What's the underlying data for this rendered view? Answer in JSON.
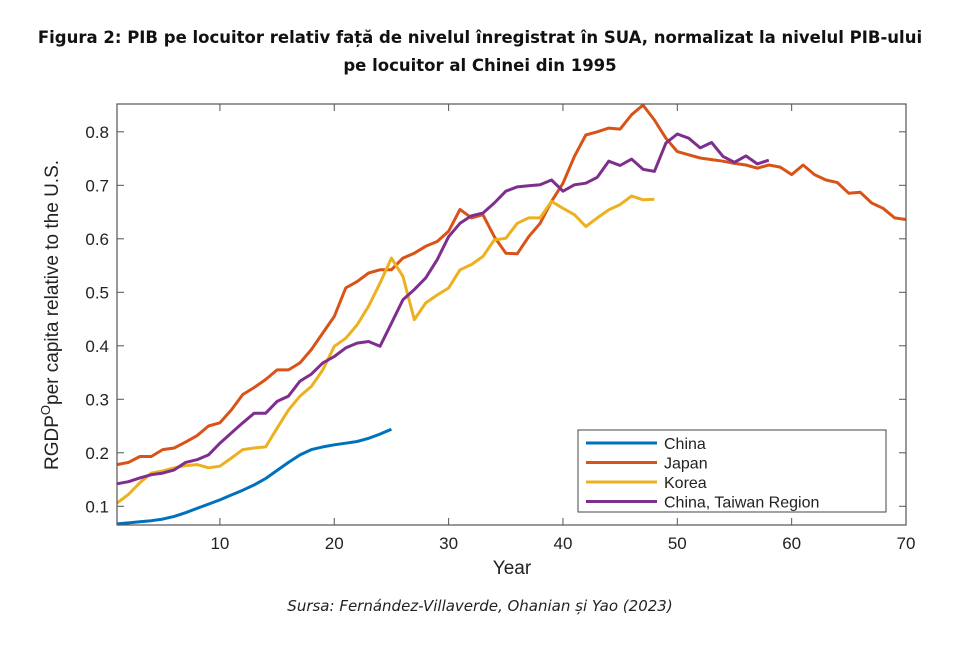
{
  "figure": {
    "title_line1": "Figura 2: PIB pe locuitor relativ față de nivelul înregistrat în SUA, normalizat la nivelul PIB-ului",
    "title_line2": "pe locuitor al Chinei din 1995",
    "source": "Sursa: Fernández-Villaverde, Ohanian și Yao (2023)"
  },
  "chart_data": {
    "type": "line",
    "title": "",
    "xlabel": "Year",
    "ylabel_main": "RGDP",
    "ylabel_sup": "O",
    "ylabel_rest": "per capita relative to the U.S.",
    "xlim": [
      1,
      70
    ],
    "ylim": [
      0.065,
      0.852
    ],
    "xticks": [
      10,
      20,
      30,
      40,
      50,
      60,
      70
    ],
    "yticks": [
      0.1,
      0.2,
      0.3,
      0.4,
      0.5,
      0.6,
      0.7,
      0.8
    ],
    "grid": false,
    "legend_position": "bottom-right",
    "series": [
      {
        "name": "China",
        "color": "#0072BD",
        "x_start": 1,
        "values": [
          0.067,
          0.069,
          0.071,
          0.073,
          0.076,
          0.081,
          0.088,
          0.096,
          0.104,
          0.112,
          0.121,
          0.13,
          0.14,
          0.152,
          0.167,
          0.182,
          0.196,
          0.206,
          0.211,
          0.215,
          0.218,
          0.221,
          0.227,
          0.235,
          0.244
        ]
      },
      {
        "name": "Japan",
        "color": "#D95319",
        "x_start": 1,
        "values": [
          0.178,
          0.182,
          0.193,
          0.193,
          0.206,
          0.209,
          0.22,
          0.232,
          0.25,
          0.256,
          0.28,
          0.309,
          0.322,
          0.337,
          0.355,
          0.355,
          0.368,
          0.393,
          0.424,
          0.455,
          0.508,
          0.52,
          0.536,
          0.542,
          0.542,
          0.564,
          0.573,
          0.586,
          0.595,
          0.614,
          0.655,
          0.639,
          0.645,
          0.604,
          0.573,
          0.572,
          0.604,
          0.629,
          0.67,
          0.704,
          0.754,
          0.794,
          0.8,
          0.807,
          0.805,
          0.832,
          0.85,
          0.822,
          0.788,
          0.763,
          0.757,
          0.751,
          0.748,
          0.745,
          0.741,
          0.738,
          0.732,
          0.738,
          0.734,
          0.72,
          0.738,
          0.72,
          0.71,
          0.705,
          0.685,
          0.687,
          0.667,
          0.657,
          0.639,
          0.636
        ]
      },
      {
        "name": "Korea",
        "color": "#EDB120",
        "x_start": 1,
        "values": [
          0.106,
          0.122,
          0.144,
          0.162,
          0.166,
          0.172,
          0.176,
          0.178,
          0.172,
          0.175,
          0.19,
          0.206,
          0.209,
          0.211,
          0.246,
          0.28,
          0.306,
          0.324,
          0.355,
          0.399,
          0.414,
          0.439,
          0.474,
          0.517,
          0.564,
          0.53,
          0.449,
          0.48,
          0.495,
          0.508,
          0.542,
          0.552,
          0.567,
          0.598,
          0.601,
          0.629,
          0.639,
          0.639,
          0.67,
          0.657,
          0.645,
          0.623,
          0.639,
          0.654,
          0.664,
          0.68,
          0.673,
          0.674
        ]
      },
      {
        "name": "China, Taiwan Region",
        "color": "#7E2F8E",
        "x_start": 1,
        "values": [
          0.142,
          0.146,
          0.153,
          0.159,
          0.162,
          0.168,
          0.182,
          0.187,
          0.196,
          0.218,
          0.237,
          0.256,
          0.274,
          0.274,
          0.296,
          0.306,
          0.334,
          0.347,
          0.368,
          0.38,
          0.396,
          0.405,
          0.408,
          0.399,
          0.442,
          0.486,
          0.505,
          0.527,
          0.561,
          0.604,
          0.629,
          0.643,
          0.648,
          0.667,
          0.689,
          0.697,
          0.699,
          0.701,
          0.71,
          0.689,
          0.701,
          0.704,
          0.715,
          0.745,
          0.737,
          0.749,
          0.73,
          0.726,
          0.779,
          0.796,
          0.788,
          0.77,
          0.78,
          0.754,
          0.743,
          0.755,
          0.74,
          0.747
        ]
      }
    ]
  }
}
